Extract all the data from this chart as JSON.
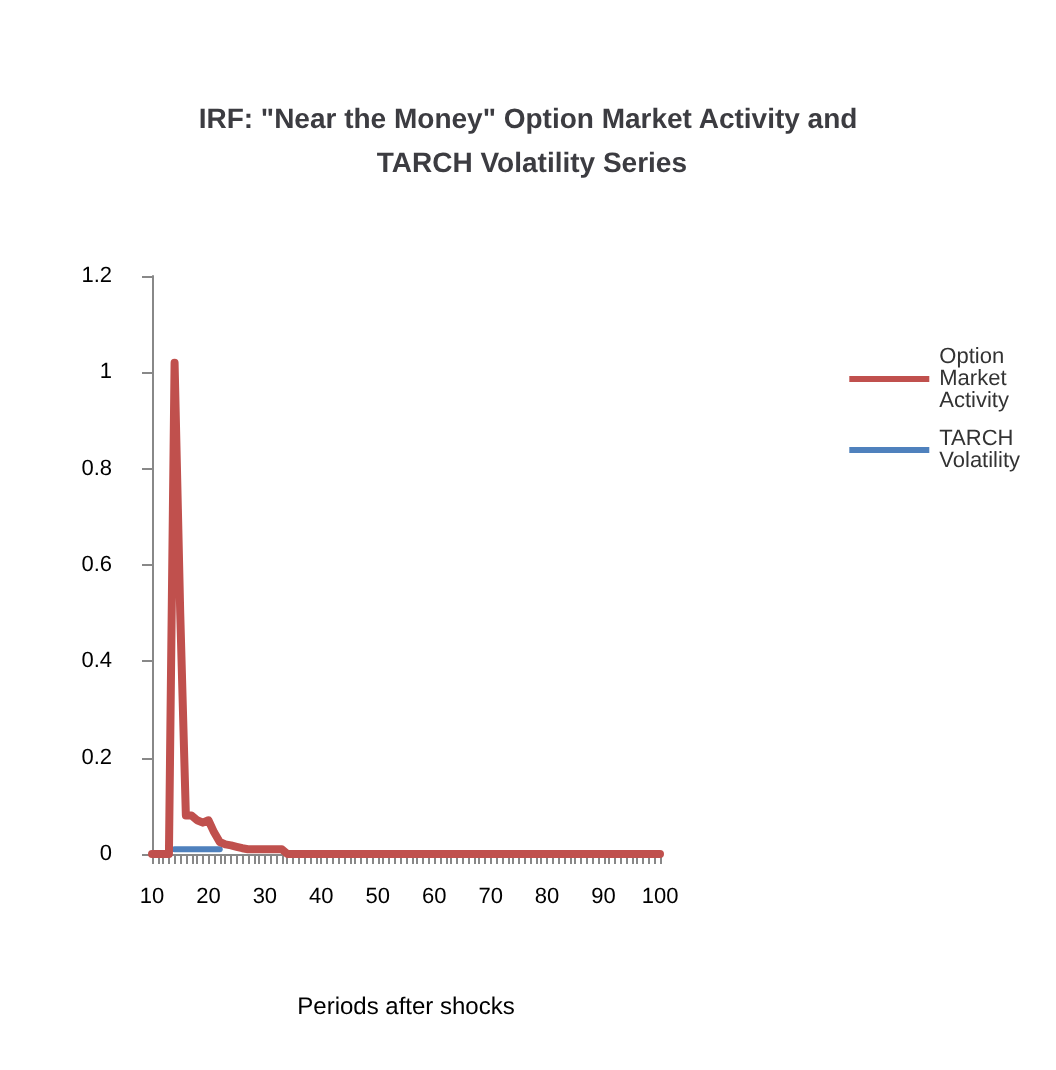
{
  "chart_data": {
    "type": "line",
    "title": "IRF: \"Near the Money\" Option Market Activity and TARCH Volatility Series",
    "xlabel": "Periods after shocks",
    "categories": [
      "10",
      null,
      null,
      null,
      null,
      null,
      null,
      null,
      null,
      null,
      "20",
      null,
      null,
      null,
      null,
      null,
      null,
      null,
      null,
      null,
      "30",
      null,
      null,
      null,
      null,
      null,
      null,
      null,
      null,
      null,
      "40",
      null,
      null,
      null,
      null,
      null,
      null,
      null,
      null,
      null,
      "50",
      null,
      null,
      null,
      null,
      null,
      null,
      null,
      null,
      null,
      "60",
      null,
      null,
      null,
      null,
      null,
      null,
      null,
      null,
      null,
      "70",
      null,
      null,
      null,
      null,
      null,
      null,
      null,
      null,
      null,
      "80",
      null,
      null,
      null,
      null,
      null,
      null,
      null,
      null,
      null,
      "90",
      null,
      null,
      null,
      null,
      null,
      null,
      null,
      null,
      null,
      "100"
    ],
    "series": [
      {
        "name": "Option Market Activity",
        "color": "#c0504d",
        "values": [
          0,
          0,
          0,
          0,
          1.02,
          0.5,
          0.08,
          0.08,
          0.07,
          0.065,
          0.07,
          0.045,
          0.025,
          0.02,
          0.018,
          0.015,
          0.012,
          0.01,
          0.01,
          0.01,
          0.01,
          0.01,
          0.01,
          0.01,
          0,
          0,
          0,
          0,
          0,
          0,
          0,
          0,
          0,
          0,
          0,
          0,
          0,
          0,
          0,
          0,
          0,
          0,
          0,
          0,
          0,
          0,
          0,
          0,
          0,
          0,
          0,
          0,
          0,
          0,
          0,
          0,
          0,
          0,
          0,
          0,
          0,
          0,
          0,
          0,
          0,
          0,
          0,
          0,
          0,
          0,
          0,
          0,
          0,
          0,
          0,
          0,
          0,
          0,
          0,
          0,
          0,
          0,
          0,
          0,
          0,
          0,
          0,
          0,
          0,
          0,
          0
        ]
      },
      {
        "name": "TARCH Volatility",
        "color": "#4f81bd",
        "values": [
          null,
          null,
          null,
          null,
          0.01,
          0.01,
          0.01,
          0.01,
          0.01,
          0.01,
          0.01,
          0.01,
          0.01,
          null,
          null,
          null,
          null,
          null,
          null,
          null,
          null,
          null,
          null,
          null,
          null,
          null,
          null,
          null,
          null,
          null,
          null,
          null,
          null,
          null,
          null,
          null,
          null,
          null,
          null,
          null,
          null,
          null,
          null,
          null,
          null,
          null,
          null,
          null,
          null,
          null,
          null,
          null,
          null,
          null,
          null,
          null,
          null,
          null,
          null,
          null,
          null,
          null,
          null,
          null,
          null,
          null,
          null,
          null,
          null,
          null,
          null,
          null,
          null,
          null,
          null,
          null,
          null,
          null,
          null,
          null,
          null,
          null,
          null,
          null,
          null,
          null,
          null,
          null,
          null,
          null,
          null
        ]
      }
    ],
    "ylim": [
      0,
      1.2
    ],
    "yticks": [
      0,
      0.2,
      0.4,
      0.6,
      0.8,
      1,
      1.2
    ],
    "grid": false,
    "legend": "right",
    "marker": "none",
    "line_style": "solid"
  }
}
